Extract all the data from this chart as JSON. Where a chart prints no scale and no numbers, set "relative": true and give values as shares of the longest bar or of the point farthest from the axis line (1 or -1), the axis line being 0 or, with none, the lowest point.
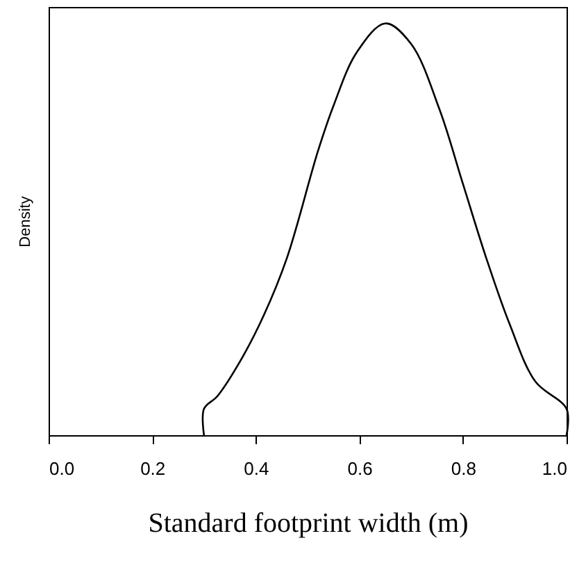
{
  "chart_data": {
    "type": "line",
    "relative": true,
    "xlabel": "Standard footprint width (m)",
    "ylabel": "Density",
    "xlim": [
      0,
      1.0
    ],
    "xticks": [
      {
        "value": 0,
        "label": "0.0"
      },
      {
        "value": 0.2,
        "label": "0.2"
      },
      {
        "value": 0.4,
        "label": "0.4"
      },
      {
        "value": 0.6,
        "label": "0.6"
      },
      {
        "value": 0.8,
        "label": "0.8"
      },
      {
        "value": 1.0,
        "label": "1.0"
      }
    ],
    "grid": false,
    "marker": "none",
    "line_style": "solid",
    "series": [
      {
        "color": "#000000",
        "x": [
          0.3,
          0.3,
          0.326,
          0.37,
          0.415,
          0.46,
          0.52,
          0.55,
          0.595,
          0.65,
          0.7,
          0.755,
          0.8,
          0.845,
          0.89,
          0.94,
          1.0,
          1.0
        ],
        "values": [
          0,
          0.064,
          0.095,
          0.18,
          0.29,
          0.43,
          0.69,
          0.8,
          0.93,
          1.0,
          0.95,
          0.79,
          0.61,
          0.43,
          0.27,
          0.13,
          0.064,
          0
        ]
      }
    ]
  }
}
